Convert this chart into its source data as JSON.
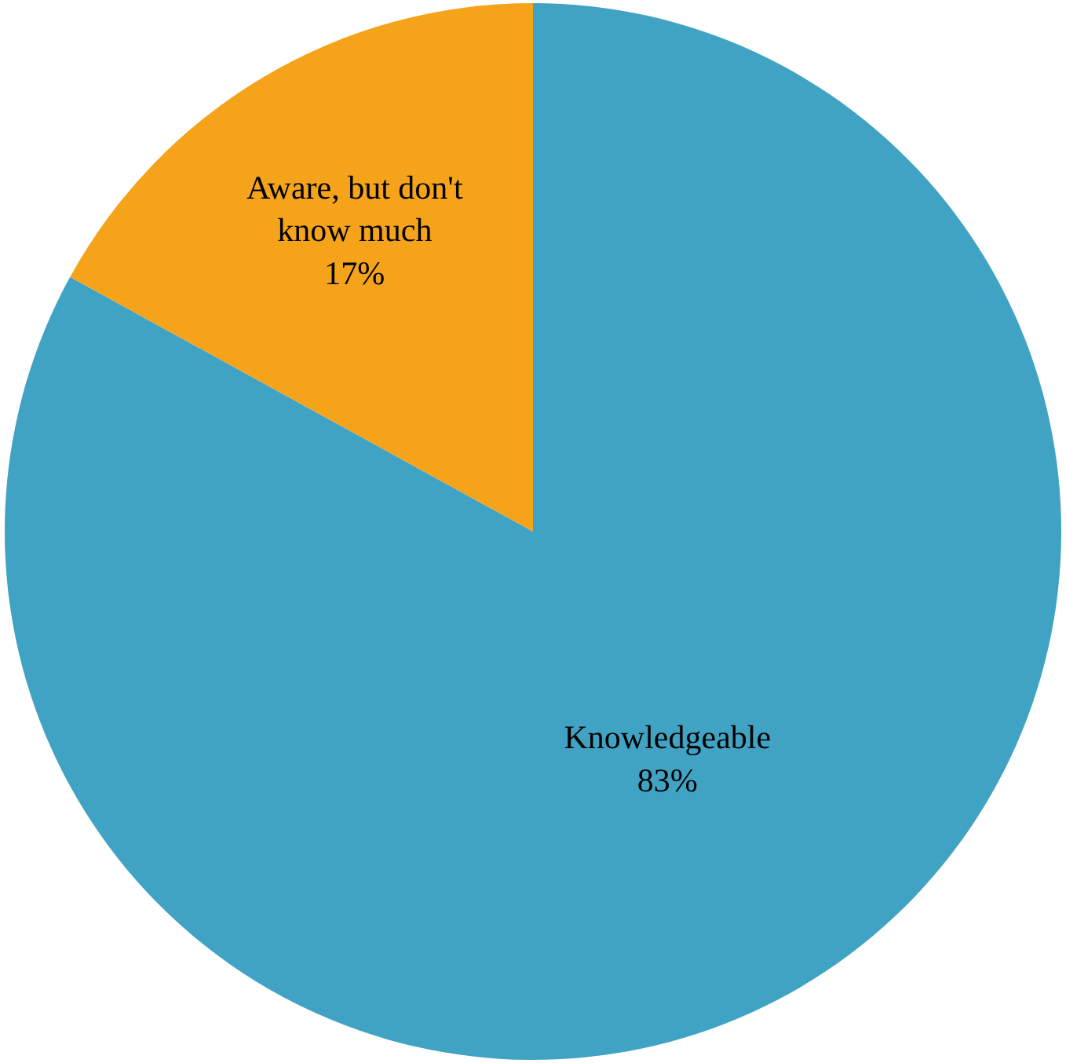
{
  "chart_data": {
    "type": "pie",
    "categories": [
      "Knowledgeable",
      "Aware, but don't know much"
    ],
    "values": [
      83,
      17
    ],
    "value_labels": [
      "83%",
      "17%"
    ],
    "colors": [
      "#41a3c3",
      "#f4a31b"
    ],
    "legend": false
  }
}
